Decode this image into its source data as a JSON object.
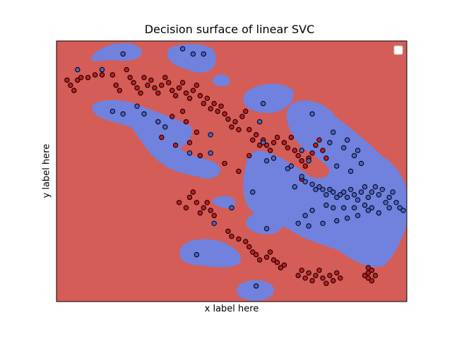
{
  "chart_data": {
    "type": "scatter",
    "title": "Decision surface of linear SVC",
    "xlabel": "x label here",
    "ylabel": "y label here",
    "xlim": [
      0,
      100
    ],
    "ylim": [
      0,
      100
    ],
    "grid": false,
    "legend": "top-right",
    "colors": {
      "class_red": "#d45d57",
      "class_blue": "#7082dd",
      "point_red": "#c21b1f",
      "point_blue": "#4a63c8",
      "edge": "#000000"
    },
    "series": [
      {
        "name": "",
        "points": [
          [
            3,
            85
          ],
          [
            4,
            83
          ],
          [
            5,
            81
          ],
          [
            6,
            85
          ],
          [
            7,
            86
          ],
          [
            9,
            86
          ],
          [
            11,
            87
          ],
          [
            13,
            87
          ],
          [
            16,
            87
          ],
          [
            17,
            83
          ],
          [
            18,
            81
          ],
          [
            20,
            89
          ],
          [
            21,
            86
          ],
          [
            22,
            84
          ],
          [
            23,
            82
          ],
          [
            24,
            80
          ],
          [
            25,
            86
          ],
          [
            26,
            83
          ],
          [
            27,
            85
          ],
          [
            28,
            82
          ],
          [
            29,
            80
          ],
          [
            30,
            83
          ],
          [
            31,
            86
          ],
          [
            32,
            84
          ],
          [
            33,
            81
          ],
          [
            34,
            79
          ],
          [
            35,
            82
          ],
          [
            36,
            84
          ],
          [
            37,
            80
          ],
          [
            38,
            78
          ],
          [
            39,
            81
          ],
          [
            40,
            83
          ],
          [
            41,
            79
          ],
          [
            42,
            76
          ],
          [
            43,
            78
          ],
          [
            44,
            74
          ],
          [
            45,
            76
          ],
          [
            46,
            73
          ],
          [
            47,
            75
          ],
          [
            48,
            72
          ],
          [
            49,
            70
          ],
          [
            50,
            67
          ],
          [
            51,
            69
          ],
          [
            52,
            66
          ],
          [
            53,
            71
          ],
          [
            54,
            73
          ],
          [
            55,
            66
          ],
          [
            56,
            62
          ],
          [
            57,
            64
          ],
          [
            58,
            60
          ],
          [
            59,
            62
          ],
          [
            60,
            60
          ],
          [
            61,
            58
          ],
          [
            62,
            61
          ],
          [
            63,
            63
          ],
          [
            65,
            61
          ],
          [
            66,
            59
          ],
          [
            67,
            63
          ],
          [
            68,
            58
          ],
          [
            69,
            56
          ],
          [
            70,
            54
          ],
          [
            71,
            52
          ],
          [
            72,
            55
          ],
          [
            73,
            57
          ],
          [
            74,
            60
          ],
          [
            75,
            62
          ],
          [
            76,
            58
          ],
          [
            77,
            55
          ],
          [
            48,
            53
          ],
          [
            52,
            50
          ],
          [
            55,
            56
          ],
          [
            34,
            60
          ],
          [
            38,
            61
          ],
          [
            30,
            63
          ],
          [
            37,
            69
          ],
          [
            33,
            71
          ],
          [
            36,
            73
          ],
          [
            40,
            65
          ],
          [
            41,
            56
          ],
          [
            38,
            40
          ],
          [
            39,
            42
          ],
          [
            40,
            38
          ],
          [
            41,
            34
          ],
          [
            42,
            36
          ],
          [
            43,
            38
          ],
          [
            44,
            35
          ],
          [
            45,
            33
          ],
          [
            35,
            38
          ],
          [
            37,
            36
          ],
          [
            49,
            27
          ],
          [
            50,
            25
          ],
          [
            52,
            24
          ],
          [
            54,
            23
          ],
          [
            55,
            21
          ],
          [
            56,
            19
          ],
          [
            57,
            18
          ],
          [
            58,
            16
          ],
          [
            60,
            17
          ],
          [
            61,
            19
          ],
          [
            62,
            16
          ],
          [
            63,
            15
          ],
          [
            64,
            13
          ],
          [
            65,
            14
          ],
          [
            69,
            10
          ],
          [
            70,
            12
          ],
          [
            71,
            9
          ],
          [
            72,
            11
          ],
          [
            73,
            8
          ],
          [
            74,
            10
          ],
          [
            75,
            12
          ],
          [
            76,
            9
          ],
          [
            77,
            7
          ],
          [
            78,
            10
          ],
          [
            79,
            8
          ],
          [
            80,
            11
          ],
          [
            81,
            9
          ],
          [
            88,
            10
          ],
          [
            89,
            11
          ],
          [
            90,
            12
          ],
          [
            91,
            10
          ],
          [
            89,
            13
          ],
          [
            89,
            9
          ],
          [
            90,
            8
          ],
          [
            70,
            47
          ]
        ]
      },
      {
        "name": "",
        "points": [
          [
            6,
            89
          ],
          [
            13,
            89
          ],
          [
            19,
            95
          ],
          [
            36,
            97
          ],
          [
            39,
            95
          ],
          [
            42,
            95
          ],
          [
            16,
            73
          ],
          [
            19,
            72
          ],
          [
            23,
            75
          ],
          [
            25,
            72
          ],
          [
            29,
            69
          ],
          [
            31,
            67
          ],
          [
            38,
            57
          ],
          [
            44,
            57
          ],
          [
            44,
            64
          ],
          [
            59,
            76
          ],
          [
            58,
            69
          ],
          [
            59,
            61
          ],
          [
            60,
            54
          ],
          [
            62,
            55
          ],
          [
            66,
            51
          ],
          [
            70,
            58
          ],
          [
            72,
            54
          ],
          [
            70,
            48
          ],
          [
            68,
            44
          ],
          [
            67,
            52
          ],
          [
            71,
            46
          ],
          [
            73,
            45
          ],
          [
            73,
            72
          ],
          [
            78,
            61
          ],
          [
            79,
            65
          ],
          [
            82,
            59
          ],
          [
            83,
            62
          ],
          [
            86,
            58
          ],
          [
            87,
            53
          ],
          [
            84,
            50
          ],
          [
            85,
            56
          ],
          [
            80,
            52
          ],
          [
            74,
            43
          ],
          [
            75,
            44
          ],
          [
            76,
            43
          ],
          [
            77,
            41
          ],
          [
            78,
            43
          ],
          [
            79,
            42
          ],
          [
            80,
            40
          ],
          [
            81,
            41
          ],
          [
            82,
            42
          ],
          [
            83,
            40
          ],
          [
            84,
            43
          ],
          [
            85,
            41
          ],
          [
            86,
            39
          ],
          [
            87,
            42
          ],
          [
            88,
            44
          ],
          [
            89,
            40
          ],
          [
            90,
            42
          ],
          [
            91,
            44
          ],
          [
            92,
            41
          ],
          [
            93,
            43
          ],
          [
            94,
            38
          ],
          [
            95,
            40
          ],
          [
            96,
            42
          ],
          [
            97,
            38
          ],
          [
            98,
            36
          ],
          [
            99,
            35
          ],
          [
            90,
            36
          ],
          [
            88,
            37
          ],
          [
            85,
            36
          ],
          [
            82,
            36
          ],
          [
            79,
            36
          ],
          [
            77,
            37
          ],
          [
            73,
            35
          ],
          [
            71,
            33
          ],
          [
            69,
            30
          ],
          [
            72,
            29
          ],
          [
            76,
            30
          ],
          [
            80,
            31
          ],
          [
            83,
            32
          ],
          [
            86,
            33
          ],
          [
            89,
            35
          ],
          [
            92,
            34
          ],
          [
            95,
            36
          ],
          [
            50,
            36
          ],
          [
            60,
            28
          ],
          [
            40,
            18
          ],
          [
            57,
            6
          ],
          [
            56,
            42
          ],
          [
            45,
            30
          ]
        ]
      }
    ]
  }
}
